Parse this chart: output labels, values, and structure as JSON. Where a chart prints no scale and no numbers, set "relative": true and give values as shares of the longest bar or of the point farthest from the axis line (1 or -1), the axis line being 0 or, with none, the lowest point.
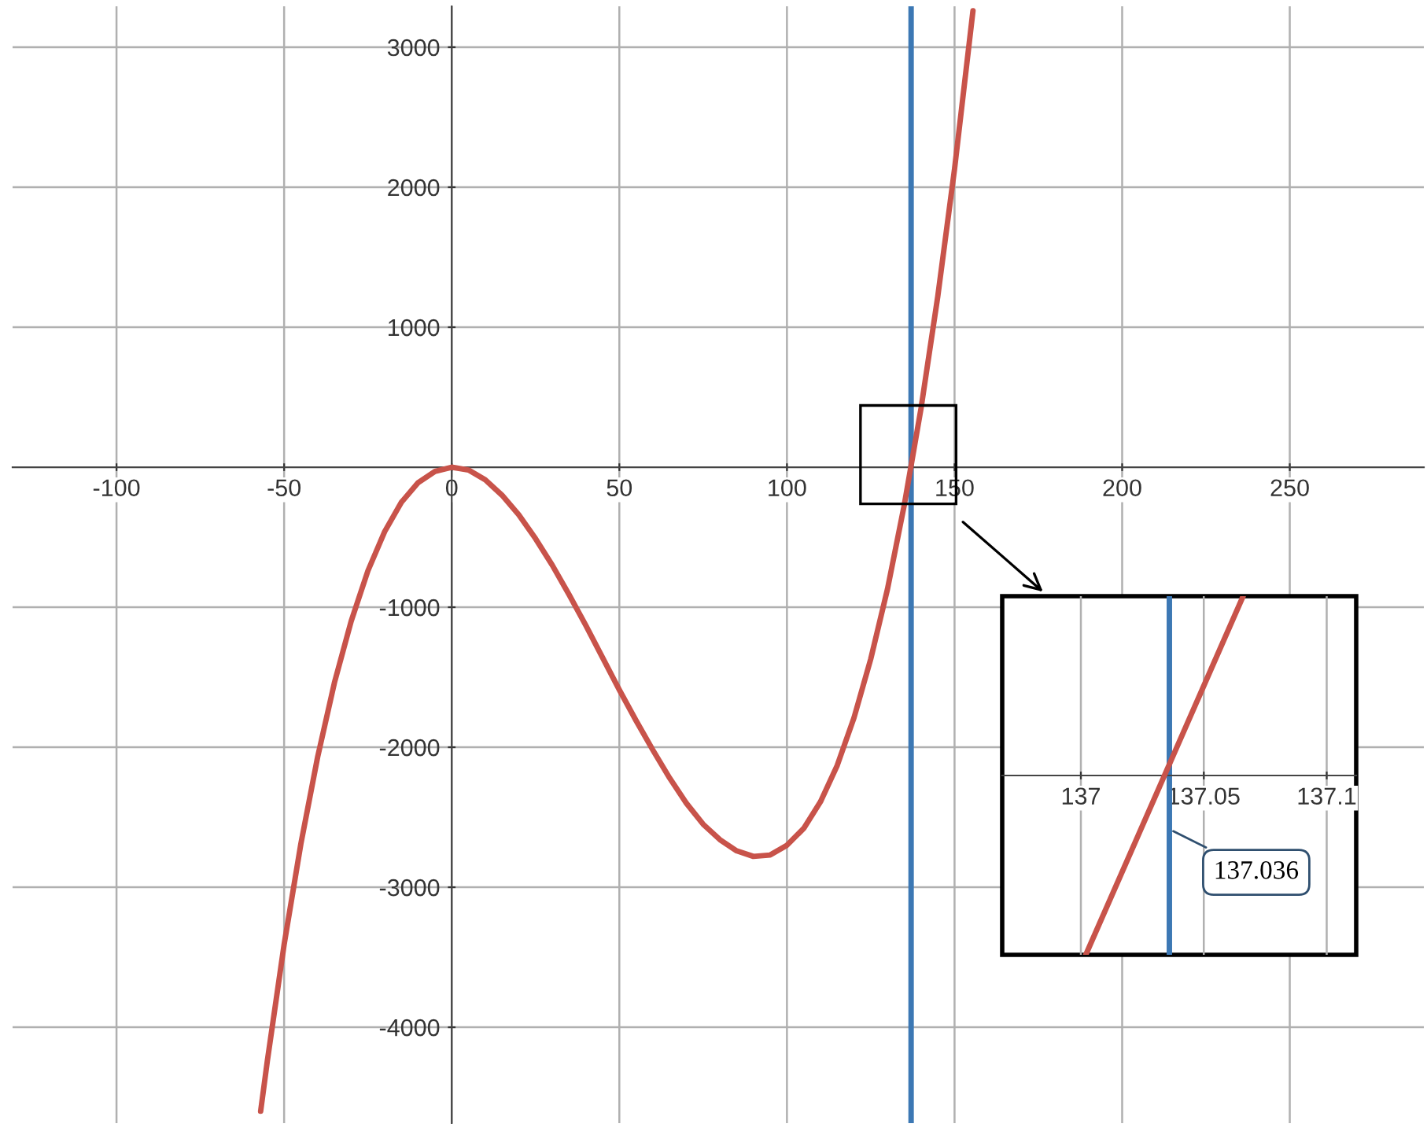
{
  "chart_data": [
    {
      "type": "line",
      "x": [
        -57,
        -55,
        -50,
        -45,
        -40,
        -35,
        -30,
        -25,
        -20,
        -15,
        -10,
        -5,
        0,
        5,
        10,
        15,
        20,
        25,
        30,
        35,
        40,
        45,
        50,
        55,
        60,
        65,
        70,
        75,
        80,
        85,
        90,
        95,
        100,
        105,
        110,
        115,
        120,
        125,
        130,
        135,
        140,
        145,
        150,
        155.5
      ],
      "series": [
        {
          "color": "#c8534a",
          "values": [
            -4600,
            -4240,
            -3410,
            -2690,
            -2070,
            -1540,
            -1100,
            -740,
            -460,
            -250,
            -110,
            -30,
            0,
            -20,
            -90,
            -200,
            -340,
            -510,
            -700,
            -910,
            -1130,
            -1360,
            -1590,
            -1810,
            -2020,
            -2220,
            -2400,
            -2550,
            -2660,
            -2740,
            -2780,
            -2770,
            -2700,
            -2580,
            -2390,
            -2130,
            -1790,
            -1370,
            -870,
            -270,
            420,
            1220,
            2130,
            3260
          ]
        }
      ],
      "xlim": [
        -131,
        290
      ],
      "ylim": [
        -4685,
        3292
      ],
      "xticks": [
        -100,
        -50,
        0,
        50,
        100,
        150,
        200,
        250
      ],
      "yticks": [
        -4000,
        -3000,
        -2000,
        -1000,
        1000,
        2000,
        3000
      ],
      "grid": true,
      "ref_lines": [
        {
          "axis": "x",
          "value": 137.036,
          "color": "#3c78b4"
        }
      ]
    },
    {
      "type": "line",
      "x": [
        137.002,
        137.066
      ],
      "series": [
        {
          "color": "#c8534a",
          "values": [
            -1,
            1
          ]
        }
      ],
      "relative": true,
      "xlim": [
        136.968,
        137.112
      ],
      "xticks": [
        137,
        137.05,
        137.1
      ],
      "grid": true,
      "ref_lines": [
        {
          "axis": "x",
          "value": 137.036,
          "color": "#3c78b4",
          "label": "137.036"
        }
      ]
    }
  ]
}
